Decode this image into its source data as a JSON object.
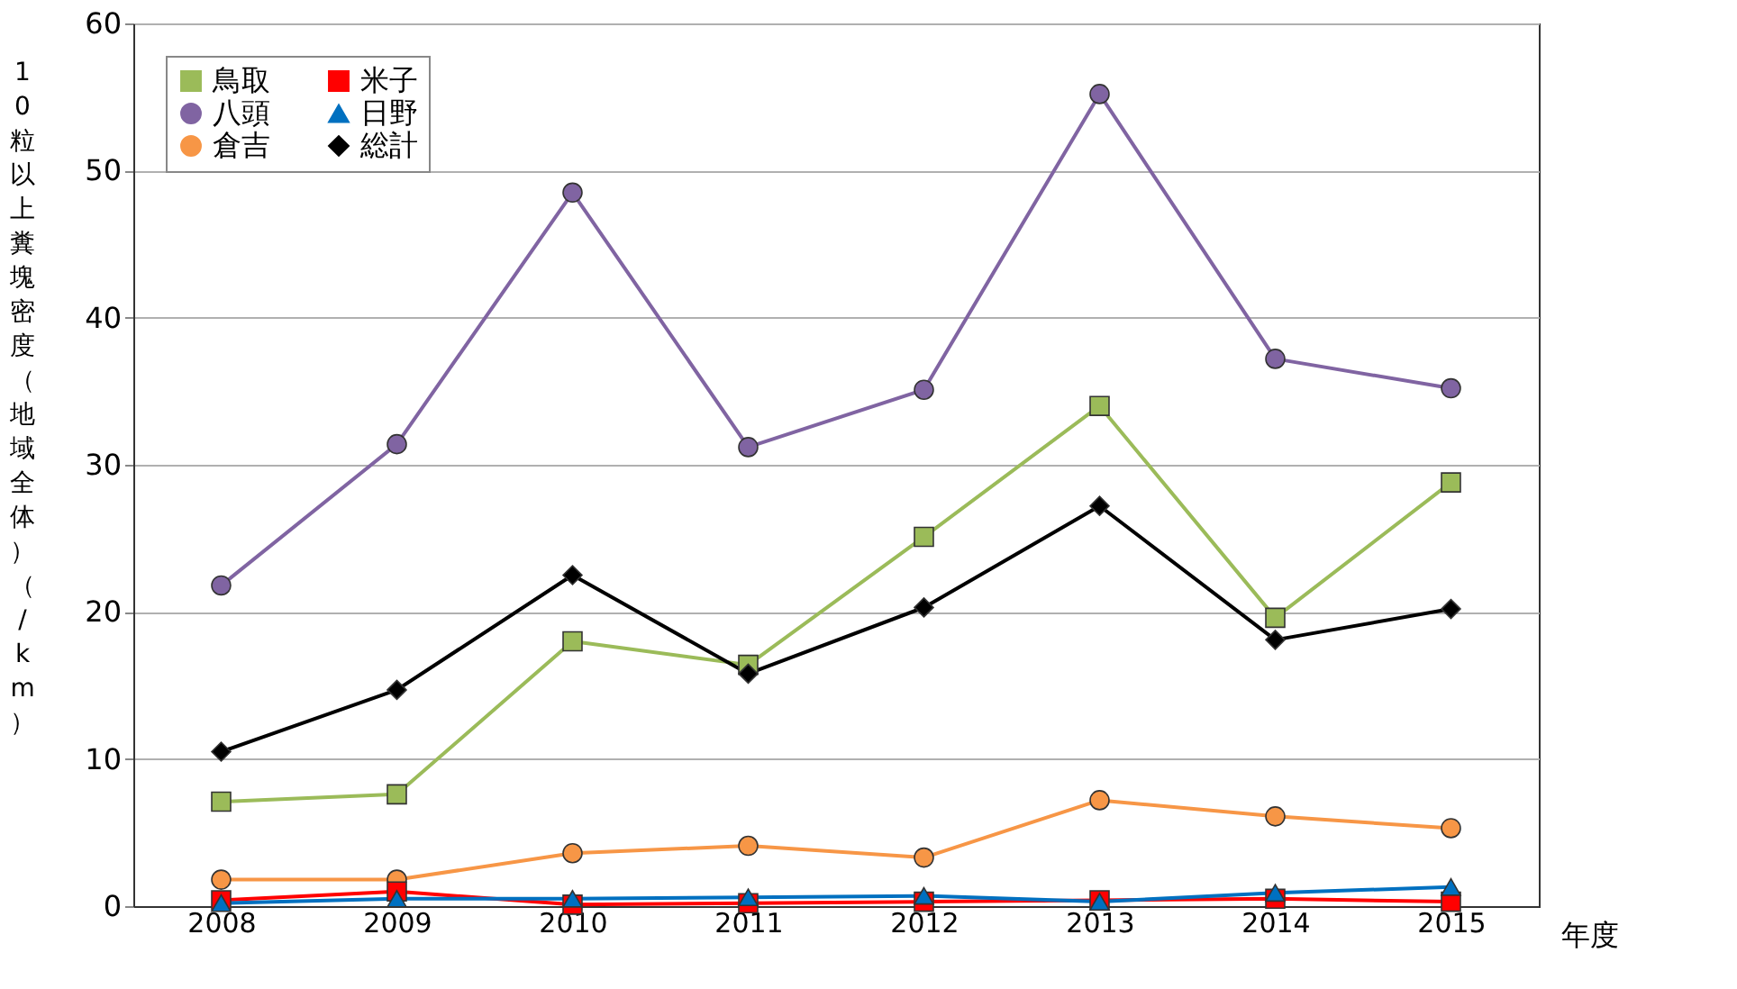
{
  "chart_data": {
    "type": "line",
    "ylabel": "10粒以上糞塊密度（地域全体）（/km）",
    "xlabel": "年度",
    "categories": [
      "2008",
      "2009",
      "2010",
      "2011",
      "2012",
      "2013",
      "2014",
      "2015"
    ],
    "series": [
      {
        "name": "鳥取",
        "color": "#9bbb59",
        "marker": "square",
        "values": [
          7.1,
          7.6,
          18.0,
          16.4,
          25.1,
          34.0,
          19.6,
          28.8
        ]
      },
      {
        "name": "八頭",
        "color": "#8064a2",
        "marker": "circle",
        "values": [
          21.8,
          31.4,
          48.5,
          31.2,
          35.1,
          55.2,
          37.2,
          35.2
        ]
      },
      {
        "name": "倉吉",
        "color": "#f79646",
        "marker": "circle",
        "values": [
          1.8,
          1.8,
          3.6,
          4.1,
          3.3,
          7.2,
          6.1,
          5.3
        ]
      },
      {
        "name": "米子",
        "color": "#ff0000",
        "marker": "square",
        "values": [
          0.4,
          1.0,
          0.1,
          0.2,
          0.3,
          0.4,
          0.5,
          0.3
        ]
      },
      {
        "name": "日野",
        "color": "#0070c0",
        "marker": "triangle",
        "values": [
          0.2,
          0.5,
          0.5,
          0.6,
          0.7,
          0.3,
          0.9,
          1.3
        ]
      },
      {
        "name": "総計",
        "color": "#000000",
        "marker": "diamond",
        "values": [
          10.5,
          14.7,
          22.5,
          15.8,
          20.3,
          27.2,
          18.1,
          20.2
        ]
      }
    ],
    "ylim": [
      0,
      60
    ],
    "yticks": [
      0,
      10,
      20,
      30,
      40,
      50,
      60
    ],
    "grid": "y",
    "legend": "top left",
    "line_style": "solid"
  }
}
